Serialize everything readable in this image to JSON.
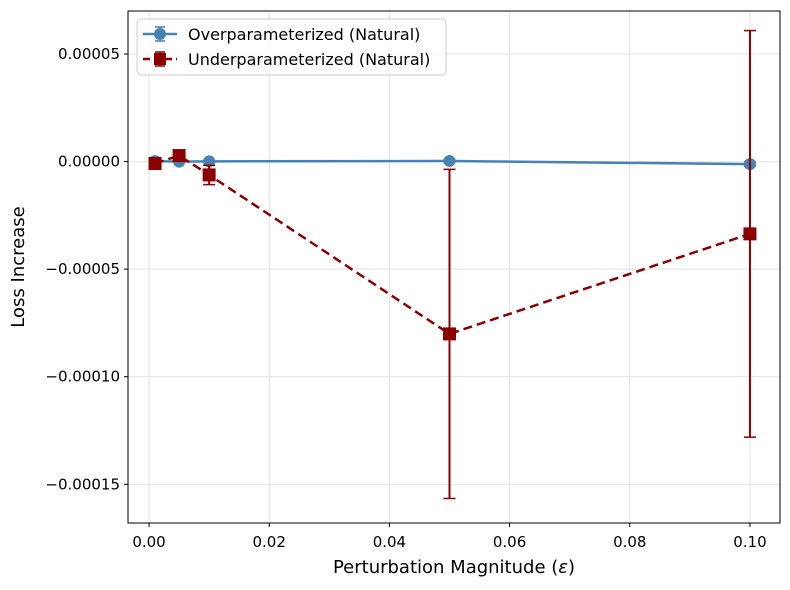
{
  "chart_data": {
    "type": "line",
    "xlabel": "Perturbation Magnitude (ε)",
    "ylabel": "Loss Increase",
    "xlim": [
      -0.0035,
      0.105
    ],
    "ylim": [
      -0.000168,
      7e-05
    ],
    "xticks": [
      0.0,
      0.02,
      0.04,
      0.06,
      0.08,
      0.1
    ],
    "xtick_labels": [
      "0.00",
      "0.02",
      "0.04",
      "0.06",
      "0.08",
      "0.10"
    ],
    "yticks": [
      5e-05,
      0.0,
      -5e-05,
      -0.0001,
      -0.00015
    ],
    "ytick_labels": [
      "0.00005",
      "0.00000",
      "−0.00005",
      "−0.00010",
      "−0.00015"
    ],
    "grid": true,
    "legend_position": "top-left",
    "series": [
      {
        "name": "Overparameterized (Natural)",
        "color": "#4682b4",
        "linestyle": "solid",
        "marker": "circle",
        "x": [
          0.001,
          0.005,
          0.01,
          0.05,
          0.1
        ],
        "y": [
          2e-07,
          0.0,
          1e-07,
          3e-07,
          -1.2e-06
        ],
        "err": [
          5e-07,
          5e-07,
          5e-07,
          8e-07,
          1e-06
        ]
      },
      {
        "name": "Underparameterized (Natural)",
        "color": "#8b0000",
        "linestyle": "dashed",
        "marker": "square",
        "x": [
          0.001,
          0.005,
          0.01,
          0.05,
          0.1
        ],
        "y": [
          -9e-07,
          2.8e-06,
          -6.2e-06,
          -8.01e-05,
          -3.36e-05
        ],
        "err": [
          1e-06,
          2e-06,
          4.5e-06,
          7.65e-05,
          9.45e-05
        ]
      }
    ]
  }
}
